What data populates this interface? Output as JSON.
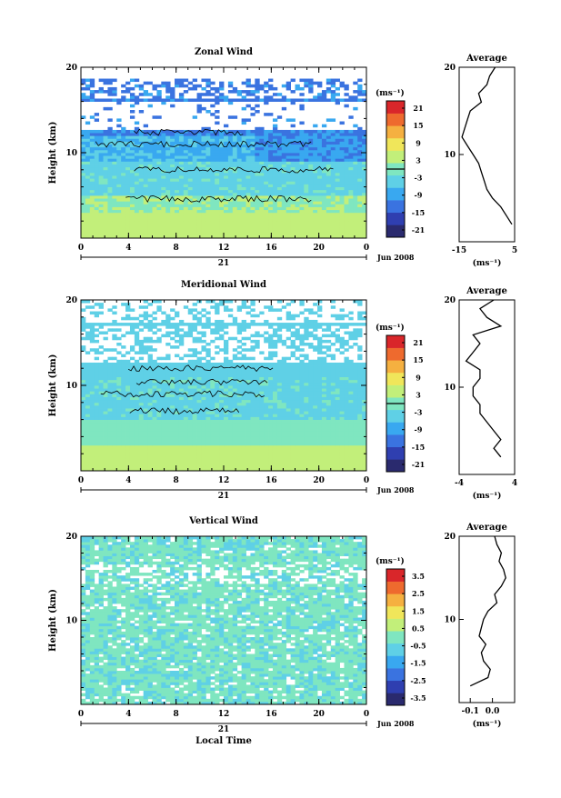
{
  "chart_data": [
    {
      "type": "heatmap",
      "title": "Zonal Wind",
      "ylabel": "Height (km)",
      "x_ticks": [
        "0",
        "4",
        "8",
        "12",
        "16",
        "20",
        "0"
      ],
      "date_tick": "21",
      "date_label": "Jun 2008",
      "y_ticks": [
        "10",
        "20"
      ],
      "colorbar": {
        "unit": "(ms⁻¹)",
        "ticks": [
          "21",
          "15",
          "9",
          "3",
          "-3",
          "-9",
          "-15",
          "-21"
        ],
        "zero_line": true
      },
      "contour_zero": true,
      "profile": {
        "title": "Average",
        "xlabel": "(ms⁻¹)",
        "x_ticks": [
          "-15",
          "5"
        ],
        "xlim": [
          -15,
          5
        ],
        "y_ticks": [
          "10",
          "20"
        ],
        "heights": [
          2,
          3,
          4,
          5,
          6,
          7,
          8,
          9,
          10,
          11,
          12,
          13,
          14,
          15,
          16,
          17,
          18,
          19,
          20
        ],
        "values": [
          4,
          2,
          0,
          -3,
          -5,
          -6,
          -7,
          -8,
          -10,
          -12,
          -14,
          -13,
          -12,
          -11,
          -7,
          -8,
          -5,
          -4,
          -2
        ]
      }
    },
    {
      "type": "heatmap",
      "title": "Meridional Wind",
      "ylabel": "Height (km)",
      "x_ticks": [
        "0",
        "4",
        "8",
        "12",
        "16",
        "20",
        "0"
      ],
      "date_tick": "21",
      "date_label": "Jun 2008",
      "y_ticks": [
        "10",
        "20"
      ],
      "colorbar": {
        "unit": "(ms⁻¹)",
        "ticks": [
          "21",
          "15",
          "9",
          "3",
          "-3",
          "-9",
          "-15",
          "-21"
        ],
        "zero_line": true
      },
      "contour_zero": true,
      "profile": {
        "title": "Average",
        "xlabel": "(ms⁻¹)",
        "x_ticks": [
          "-4",
          "4"
        ],
        "xlim": [
          -4,
          4
        ],
        "y_ticks": [
          "10",
          "20"
        ],
        "heights": [
          2,
          3,
          4,
          5,
          6,
          7,
          8,
          9,
          10,
          11,
          12,
          13,
          14,
          15,
          16,
          17,
          18,
          19,
          20
        ],
        "values": [
          2,
          1,
          2,
          1,
          0,
          -1,
          -1,
          -2,
          -2,
          -1,
          -1,
          -3,
          -2,
          -1,
          -2,
          2,
          0,
          -1,
          1
        ]
      }
    },
    {
      "type": "heatmap",
      "title": "Vertical Wind",
      "ylabel": "Height (km)",
      "xlabel": "Local Time",
      "x_ticks": [
        "0",
        "4",
        "8",
        "12",
        "16",
        "20",
        "0"
      ],
      "date_tick": "21",
      "date_label": "Jun 2008",
      "y_ticks": [
        "10",
        "20"
      ],
      "colorbar": {
        "unit": "(ms⁻¹)",
        "ticks": [
          "3.5",
          "2.5",
          "1.5",
          "0.5",
          "-0.5",
          "-1.5",
          "-2.5",
          "-3.5"
        ],
        "zero_line": false
      },
      "contour_zero": false,
      "profile": {
        "title": "Average",
        "xlabel": "(ms⁻¹)",
        "x_ticks": [
          "-0.1",
          "0.0"
        ],
        "xlim": [
          -0.15,
          0.1
        ],
        "y_ticks": [
          "10",
          "20"
        ],
        "heights": [
          2,
          3,
          4,
          5,
          6,
          7,
          8,
          9,
          10,
          11,
          12,
          13,
          14,
          15,
          16,
          17,
          18,
          19,
          20
        ],
        "values": [
          -0.1,
          -0.02,
          -0.01,
          -0.04,
          -0.05,
          -0.03,
          -0.06,
          -0.05,
          -0.04,
          -0.02,
          0.02,
          0.01,
          0.04,
          0.06,
          0.05,
          0.03,
          0.04,
          0.02,
          0.01
        ]
      }
    }
  ],
  "palette": [
    "#2a2a6e",
    "#2f3fb0",
    "#3a73e0",
    "#39a8f0",
    "#5fd0e6",
    "#7fe6c0",
    "#c2ef7a",
    "#f0e65a",
    "#f5b040",
    "#ee6a2e",
    "#d9262a"
  ],
  "colors": {
    "background": "#ffffff",
    "axis": "#000000",
    "contour": "#000000"
  }
}
